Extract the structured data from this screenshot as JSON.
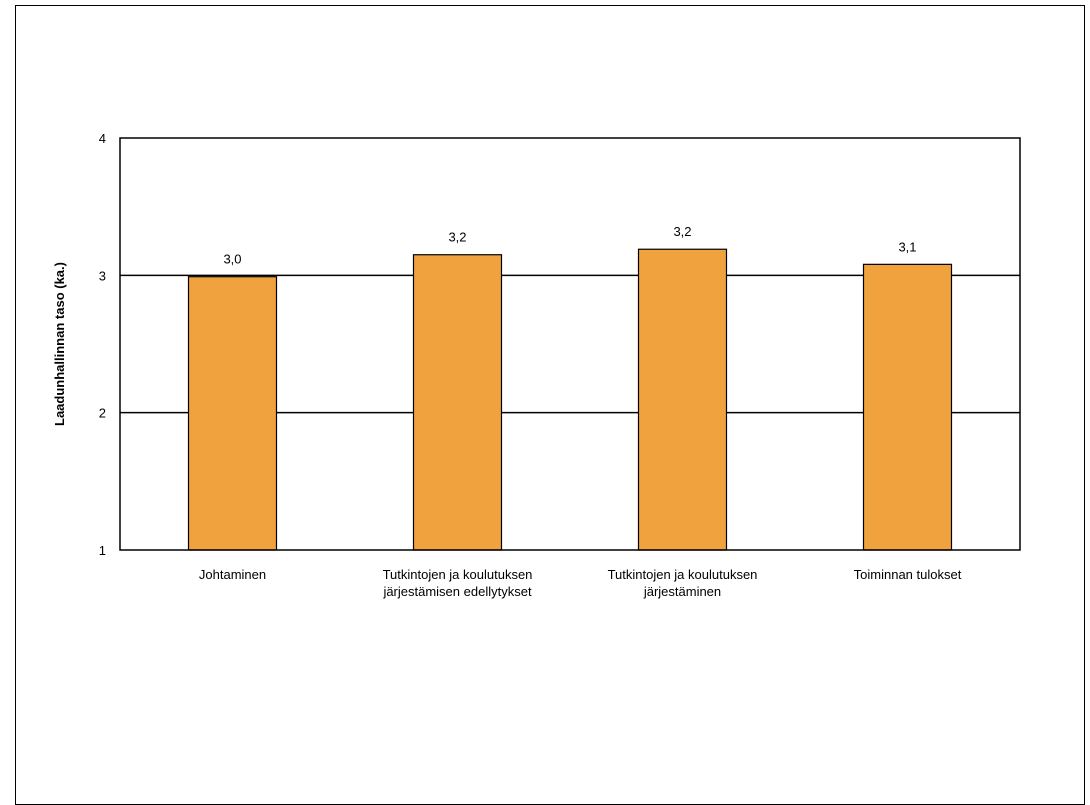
{
  "chart_data": {
    "type": "bar",
    "ylabel": "Laadunhallinnan taso (ka.)",
    "xlabel": "",
    "ylim": [
      1,
      4
    ],
    "yticks": [
      1,
      2,
      3,
      4
    ],
    "ytick_labels": [
      "1",
      "2",
      "3",
      "4"
    ],
    "grid": true,
    "legend": "none",
    "bar_color": "#F0A23E",
    "categories": [
      [
        "Johtaminen"
      ],
      [
        "Tutkintojen ja koulutuksen",
        "järjestämisen edellytykset"
      ],
      [
        "Tutkintojen ja koulutuksen",
        "järjestäminen"
      ],
      [
        "Toiminnan tulokset"
      ]
    ],
    "values": [
      2.99,
      3.15,
      3.19,
      3.08
    ],
    "data_labels": [
      "3,0",
      "3,2",
      "3,2",
      "3,1"
    ]
  }
}
